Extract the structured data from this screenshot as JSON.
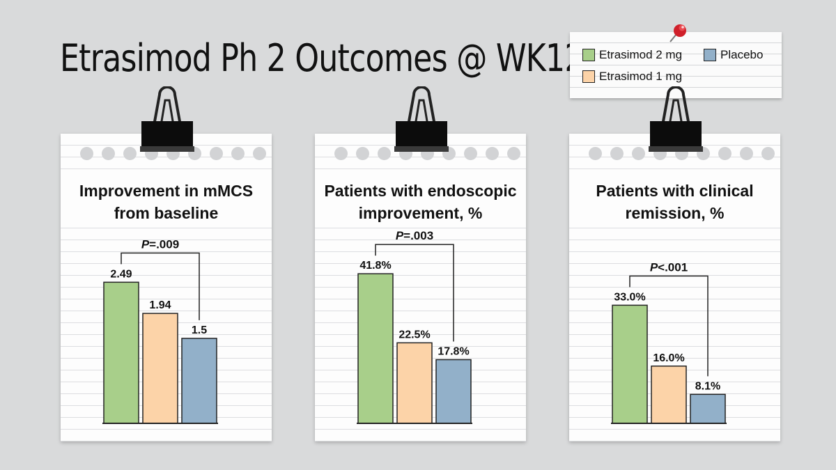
{
  "title": "Etrasimod Ph 2 Outcomes @ WK12",
  "legend": [
    {
      "label": "Etrasimod 2 mg",
      "color": "#a8cf8a"
    },
    {
      "label": "Etrasimod 1 mg",
      "color": "#fcd3a8"
    },
    {
      "label": "Placebo",
      "color": "#92b0c9"
    }
  ],
  "icons": {
    "pin": "pushpin-icon",
    "clip": "binder-clip-icon"
  },
  "chart_data": [
    {
      "type": "bar",
      "title": "Improvement in mMCS from baseline",
      "title_lines": [
        "Improvement in mMCS",
        "from baseline"
      ],
      "categories": [
        "Etrasimod 2 mg",
        "Etrasimod 1 mg",
        "Placebo"
      ],
      "values": [
        2.49,
        1.94,
        1.5
      ],
      "value_labels": [
        "2.49",
        "1.94",
        "1.5"
      ],
      "ylim": [
        0,
        3.6
      ],
      "comparison": {
        "from": 0,
        "to": 2,
        "label_italic": "P",
        "label_rest": "=.009"
      }
    },
    {
      "type": "bar",
      "title": "Patients with endoscopic improvement, %",
      "title_lines": [
        "Patients with endoscopic",
        "improvement, %"
      ],
      "categories": [
        "Etrasimod 2 mg",
        "Etrasimod 1 mg",
        "Placebo"
      ],
      "values": [
        41.8,
        22.5,
        17.8
      ],
      "value_labels": [
        "41.8%",
        "22.5%",
        "17.8%"
      ],
      "ylim": [
        0,
        57
      ],
      "comparison": {
        "from": 0,
        "to": 2,
        "label_italic": "P",
        "label_rest": "=.003"
      }
    },
    {
      "type": "bar",
      "title": "Patients with clinical remission, %",
      "title_lines": [
        "Patients with clinical",
        "remission, %"
      ],
      "categories": [
        "Etrasimod 2 mg",
        "Etrasimod 1 mg",
        "Placebo"
      ],
      "values": [
        33.0,
        16.0,
        8.1
      ],
      "value_labels": [
        "33.0%",
        "16.0%",
        "8.1%"
      ],
      "ylim": [
        0,
        57
      ],
      "comparison": {
        "from": 0,
        "to": 2,
        "label_italic": "P",
        "label_rest": "<.001"
      }
    }
  ]
}
